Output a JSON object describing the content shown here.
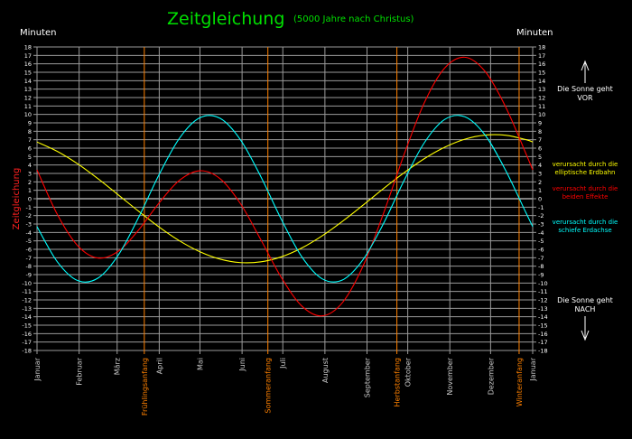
{
  "chart_data": {
    "type": "line",
    "title": "Zeitgleichung",
    "subtitle": "(5000 Jahre nach Christus)",
    "ylabel": "Zeitgleichung",
    "ylabel_left_unit": "Minuten",
    "ylabel_right_unit": "Minuten",
    "ylim": [
      -18,
      18
    ],
    "xlim_days": [
      0,
      365
    ],
    "grid": true,
    "yticks": [
      18,
      17,
      16,
      15,
      14,
      13,
      12,
      11,
      10,
      9,
      8,
      7,
      6,
      5,
      4,
      3,
      2,
      1,
      0,
      -1,
      -2,
      -3,
      -4,
      -5,
      -6,
      -7,
      -8,
      -9,
      -10,
      -11,
      -12,
      -13,
      -14,
      -15,
      -16,
      -17,
      -18
    ],
    "months": [
      {
        "label": "Januar",
        "day": 0
      },
      {
        "label": "Februar",
        "day": 31
      },
      {
        "label": "März",
        "day": 59
      },
      {
        "label": "April",
        "day": 90
      },
      {
        "label": "Mai",
        "day": 120
      },
      {
        "label": "Juni",
        "day": 151
      },
      {
        "label": "Juli",
        "day": 181
      },
      {
        "label": "August",
        "day": 212
      },
      {
        "label": "September",
        "day": 243
      },
      {
        "label": "Oktober",
        "day": 273
      },
      {
        "label": "November",
        "day": 304
      },
      {
        "label": "Dezember",
        "day": 334
      },
      {
        "label": "Januar",
        "day": 365
      }
    ],
    "seasons": [
      {
        "label": "Frühlingsanfang",
        "day": 79
      },
      {
        "label": "Sommeranfang",
        "day": 170
      },
      {
        "label": "Herbstanfang",
        "day": 265
      },
      {
        "label": "Winteranfang",
        "day": 355
      }
    ],
    "x_days": [
      0,
      15,
      30,
      45,
      60,
      75,
      90,
      105,
      120,
      135,
      150,
      165,
      180,
      195,
      210,
      225,
      240,
      255,
      270,
      285,
      300,
      315,
      330,
      345,
      360,
      365
    ],
    "series": [
      {
        "name": "verursacht durch die elliptische Erdbahn",
        "color": "#ffff00",
        "values": [
          6.73,
          5.61,
          4.13,
          2.36,
          0.44,
          -1.51,
          -3.37,
          -5.0,
          -6.29,
          -7.17,
          -7.58,
          -7.48,
          -6.89,
          -5.84,
          -4.4,
          -2.67,
          -0.77,
          1.19,
          3.05,
          4.73,
          6.09,
          7.06,
          7.55,
          7.53,
          7.01,
          6.73
        ]
      },
      {
        "name": "verursacht durch die beiden Effekte",
        "color": "#ff0000",
        "values": [
          3.42,
          -1.88,
          -5.58,
          -7.04,
          -6.21,
          -3.67,
          -0.48,
          2.2,
          3.32,
          2.35,
          -0.63,
          -4.92,
          -9.37,
          -12.73,
          -13.9,
          -12.3,
          -8.01,
          -1.8,
          5.11,
          11.32,
          15.47,
          16.78,
          15.09,
          10.92,
          5.36,
          3.42
        ]
      },
      {
        "name": "verursacht durch die schiefe Erdachse",
        "color": "#00ffff",
        "values": [
          -3.31,
          -7.49,
          -9.71,
          -9.4,
          -6.65,
          -2.16,
          2.89,
          7.2,
          9.61,
          9.52,
          6.95,
          2.56,
          -2.48,
          -6.89,
          -9.5,
          -9.63,
          -7.24,
          -2.99,
          2.06,
          6.59,
          9.38,
          9.72,
          7.54,
          3.39,
          -1.65,
          -3.31
        ]
      }
    ],
    "legend": [
      {
        "line1": "verursacht durch die",
        "line2": "elliptische Erdbahn",
        "color": "#ffff00"
      },
      {
        "line1": "verursacht durch die",
        "line2": "beiden Effekte",
        "color": "#ff0000"
      },
      {
        "line1": "verursacht durch die",
        "line2": "schiefe Erdachse",
        "color": "#00ffff"
      }
    ],
    "annotations": {
      "ahead": {
        "line1": "Die Sonne geht",
        "line2": "VOR"
      },
      "behind": {
        "line1": "Die Sonne geht",
        "line2": "NACH"
      }
    }
  },
  "colors": {
    "title": "#00e000",
    "grid": "#9a9a9a",
    "season": "#ff8000",
    "axis_text": "#ffffff",
    "month_text": "#c8c8c8"
  }
}
